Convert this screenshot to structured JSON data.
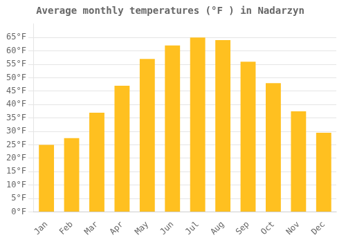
{
  "chart_data": {
    "type": "bar",
    "title": "Average monthly temperatures (°F ) in Nadarzyn",
    "categories": [
      "Jan",
      "Feb",
      "Mar",
      "Apr",
      "May",
      "Jun",
      "Jul",
      "Aug",
      "Sep",
      "Oct",
      "Nov",
      "Dec"
    ],
    "values": [
      25,
      27.5,
      37,
      47,
      57,
      62,
      65,
      64,
      56,
      48,
      37.5,
      29.5
    ],
    "color": "#FFC020",
    "ylim": [
      0,
      70
    ],
    "yticks": [
      {
        "value": 0,
        "label": "0°F"
      },
      {
        "value": 5,
        "label": "5°F"
      },
      {
        "value": 10,
        "label": "10°F"
      },
      {
        "value": 15,
        "label": "15°F"
      },
      {
        "value": 20,
        "label": "20°F"
      },
      {
        "value": 25,
        "label": "25°F"
      },
      {
        "value": 30,
        "label": "30°F"
      },
      {
        "value": 35,
        "label": "35°F"
      },
      {
        "value": 40,
        "label": "40°F"
      },
      {
        "value": 45,
        "label": "45°F"
      },
      {
        "value": 50,
        "label": "50°F"
      },
      {
        "value": 55,
        "label": "55°F"
      },
      {
        "value": 60,
        "label": "60°F"
      },
      {
        "value": 65,
        "label": "65°F"
      }
    ],
    "grid": true
  }
}
